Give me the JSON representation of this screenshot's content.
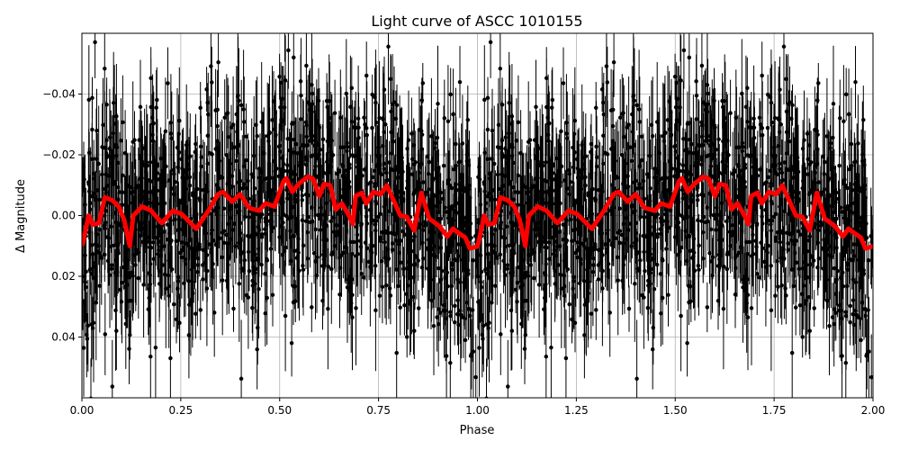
{
  "chart_data": {
    "type": "scatter",
    "title": "Light curve of ASCC 1010155",
    "xlabel": "Phase",
    "ylabel": "Δ Magnitude",
    "xlim": [
      0,
      2
    ],
    "ylim": [
      0.06,
      -0.06
    ],
    "y_inverted": true,
    "grid": true,
    "xticks": [
      "0.00",
      "0.25",
      "0.50",
      "0.75",
      "1.00",
      "1.25",
      "1.50",
      "1.75",
      "2.00"
    ],
    "xtick_values": [
      0,
      0.25,
      0.5,
      0.75,
      1,
      1.25,
      1.5,
      1.75,
      2
    ],
    "yticks": [
      "−0.04",
      "−0.02",
      "0.00",
      "0.02",
      "0.04"
    ],
    "ytick_values": [
      -0.04,
      -0.02,
      0,
      0.02,
      0.04
    ],
    "colors": {
      "points": "#000000",
      "model": "#ff0000",
      "grid": "#b0b0b0"
    },
    "model_curve": {
      "phase": [
        0.002,
        0.017,
        0.027,
        0.043,
        0.058,
        0.077,
        0.093,
        0.107,
        0.121,
        0.13,
        0.152,
        0.175,
        0.202,
        0.23,
        0.252,
        0.289,
        0.32,
        0.344,
        0.357,
        0.38,
        0.4,
        0.423,
        0.448,
        0.464,
        0.487,
        0.51,
        0.517,
        0.532,
        0.548,
        0.571,
        0.585,
        0.6,
        0.612,
        0.628,
        0.642,
        0.657,
        0.673,
        0.685,
        0.692,
        0.708,
        0.719,
        0.737,
        0.755,
        0.771,
        0.805,
        0.821,
        0.84,
        0.858,
        0.878,
        0.903,
        0.924,
        0.938,
        0.953,
        0.969,
        0.981,
        0.999
      ],
      "delta_mag": [
        0.0093,
        0.0,
        0.003,
        0.0025,
        -0.006,
        -0.005,
        -0.003,
        0.0015,
        0.01,
        0.0,
        -0.003,
        -0.0016,
        0.0025,
        -0.0016,
        -0.0005,
        0.0044,
        -0.0016,
        -0.007,
        -0.0078,
        -0.0046,
        -0.007,
        -0.0025,
        -0.0016,
        -0.004,
        -0.003,
        -0.0114,
        -0.0122,
        -0.0078,
        -0.0104,
        -0.0128,
        -0.012,
        -0.0064,
        -0.0104,
        -0.0099,
        -0.002,
        -0.004,
        -0.0005,
        0.0028,
        -0.0064,
        -0.0075,
        -0.004,
        -0.0078,
        -0.007,
        -0.0099,
        0.0,
        0.0004,
        0.0049,
        -0.0075,
        0.001,
        0.0034,
        0.0069,
        0.0043,
        0.0058,
        0.0072,
        0.0108,
        0.0102
      ],
      "repeats_every_phase": 1
    }
  }
}
